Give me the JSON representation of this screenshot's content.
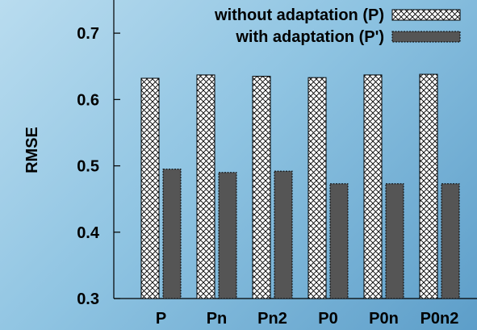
{
  "chart_data": {
    "type": "bar",
    "categories": [
      "P",
      "Pn",
      "Pn2",
      "P0",
      "P0n",
      "P0n2"
    ],
    "series": [
      {
        "name": "without adaptation (P)",
        "values": [
          0.632,
          0.637,
          0.635,
          0.633,
          0.637,
          0.638
        ],
        "pattern": "crosshatch",
        "color": "#ffffff"
      },
      {
        "name": "with adaptation (P')",
        "values": [
          0.495,
          0.49,
          0.492,
          0.473,
          0.473,
          0.473
        ],
        "pattern": "solid",
        "color": "#555555"
      }
    ],
    "title": "",
    "xlabel": "",
    "ylabel": "RMSE",
    "ylim": [
      0.3,
      0.75
    ],
    "yticks": [
      0.3,
      0.4,
      0.5,
      0.6,
      0.7
    ],
    "ytick_labels": [
      "0.3",
      "0.4",
      "0.5",
      "0.6",
      "0.7"
    ],
    "grid": false,
    "legend_position": "top-right"
  }
}
